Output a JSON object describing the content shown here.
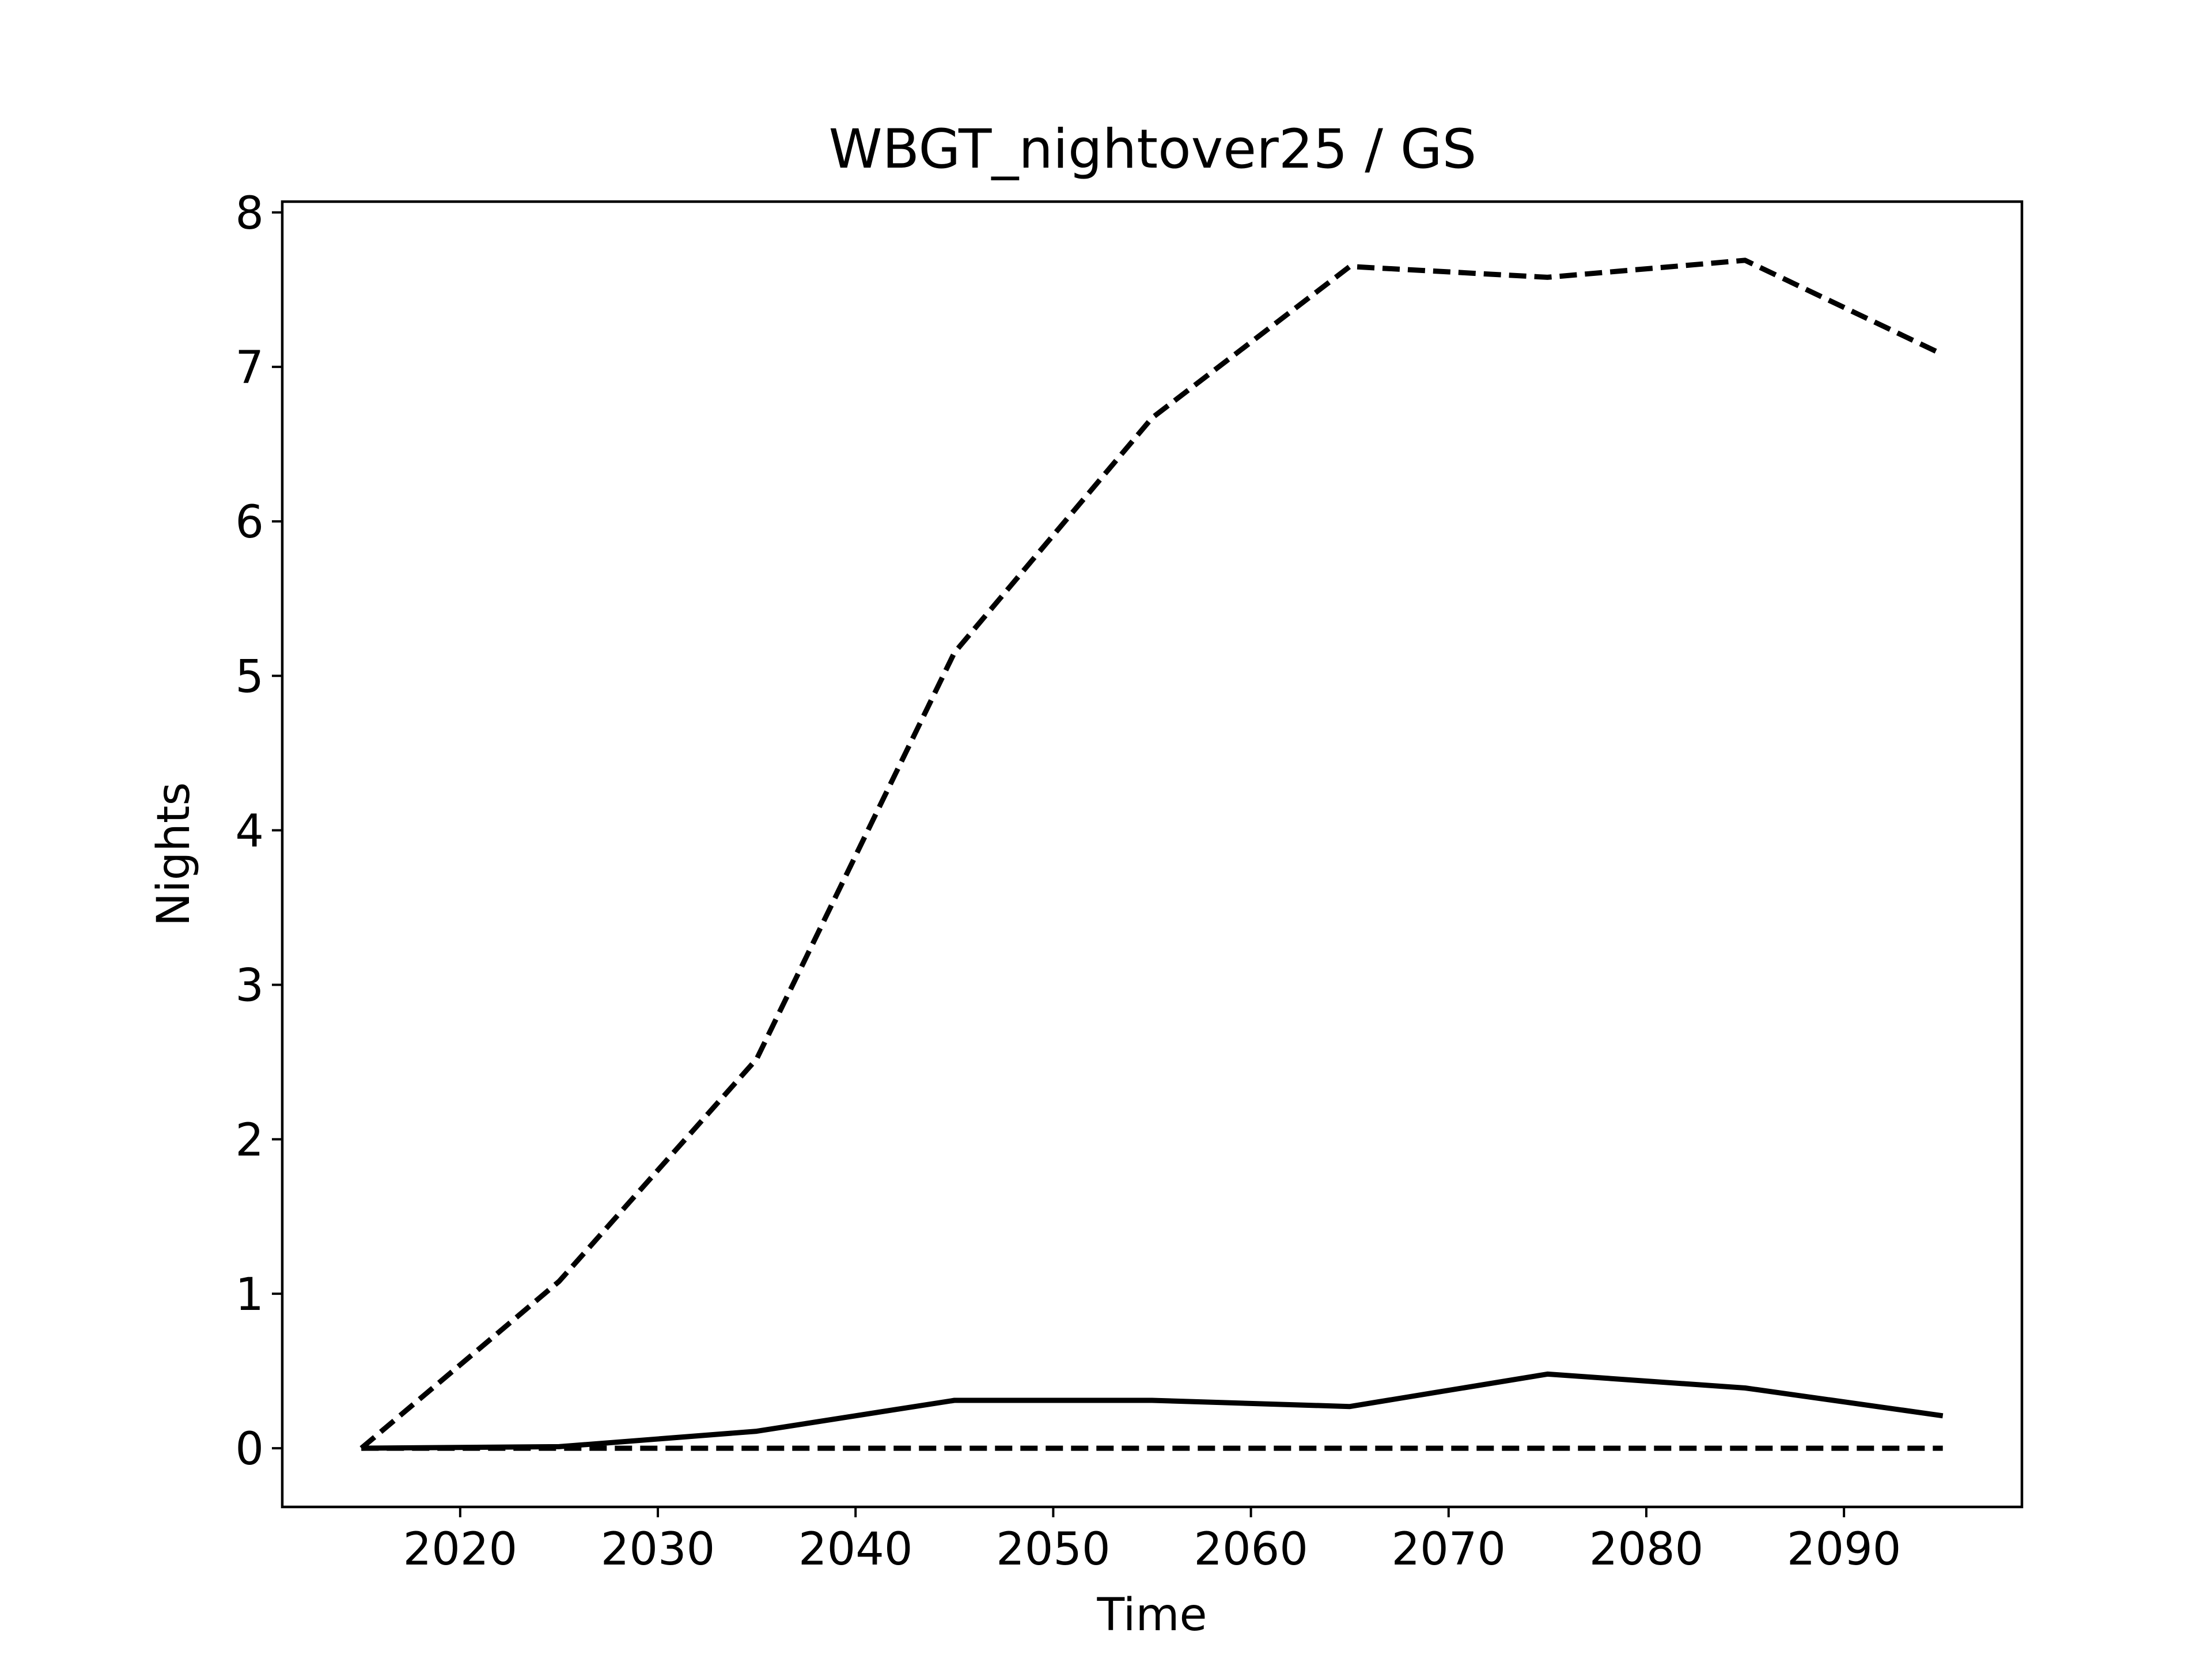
{
  "chart_data": {
    "type": "line",
    "title": "WBGT_nightover25 / GS",
    "xlabel": "Time",
    "ylabel": "Nights",
    "xlim": [
      2011,
      2099
    ],
    "ylim": [
      -0.38,
      8.07
    ],
    "xticks": [
      2020,
      2030,
      2040,
      2050,
      2060,
      2070,
      2080,
      2090
    ],
    "yticks": [
      0,
      1,
      2,
      3,
      4,
      5,
      6,
      7,
      8
    ],
    "grid": false,
    "legend": "none",
    "x": [
      2015,
      2025,
      2035,
      2045,
      2055,
      2065,
      2075,
      2085,
      2095
    ],
    "series": [
      {
        "line_style": "dashed",
        "color": "#000000",
        "values": [
          0.0,
          1.08,
          2.52,
          5.15,
          6.67,
          7.65,
          7.58,
          7.69,
          7.08
        ]
      },
      {
        "line_style": "solid",
        "color": "#000000",
        "values": [
          0.0,
          0.01,
          0.11,
          0.31,
          0.31,
          0.27,
          0.48,
          0.39,
          0.21
        ]
      },
      {
        "line_style": "dashed",
        "color": "#000000",
        "values": [
          0.0,
          0.0,
          0.0,
          0.0,
          0.0,
          0.0,
          0.0,
          0.0,
          0.0
        ]
      }
    ]
  }
}
